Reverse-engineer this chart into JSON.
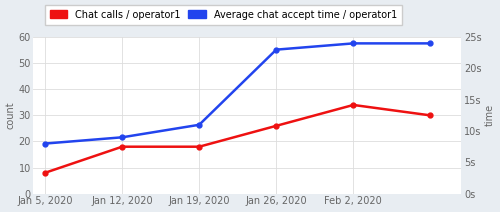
{
  "x_labels": [
    "Jan 5, 2020",
    "Jan 12, 2020",
    "Jan 19, 2020",
    "Jan 26, 2020",
    "Feb 2, 2020"
  ],
  "red_values": [
    8,
    18,
    18,
    26,
    34,
    30
  ],
  "blue_values": [
    8,
    9,
    11,
    23,
    24,
    24
  ],
  "red_label": "Chat calls / operator1",
  "blue_label": "Average chat accept time / operator1",
  "red_color": "#ee1111",
  "blue_color": "#2244ee",
  "left_ylabel": "count",
  "right_ylabel": "time",
  "left_yticks": [
    0,
    10,
    20,
    30,
    40,
    50,
    60
  ],
  "right_yticks": [
    0,
    5,
    10,
    15,
    20,
    25
  ],
  "right_yticklabels": [
    "0s",
    "5s",
    "10s",
    "15s",
    "20s",
    "25s"
  ],
  "left_ylim": [
    0,
    60
  ],
  "right_ylim": [
    0,
    25
  ],
  "outer_bg_color": "#e8edf2",
  "plot_bg_color": "#ffffff",
  "grid_color": "#dddddd",
  "linewidth": 1.8,
  "marker_size": 3.5
}
